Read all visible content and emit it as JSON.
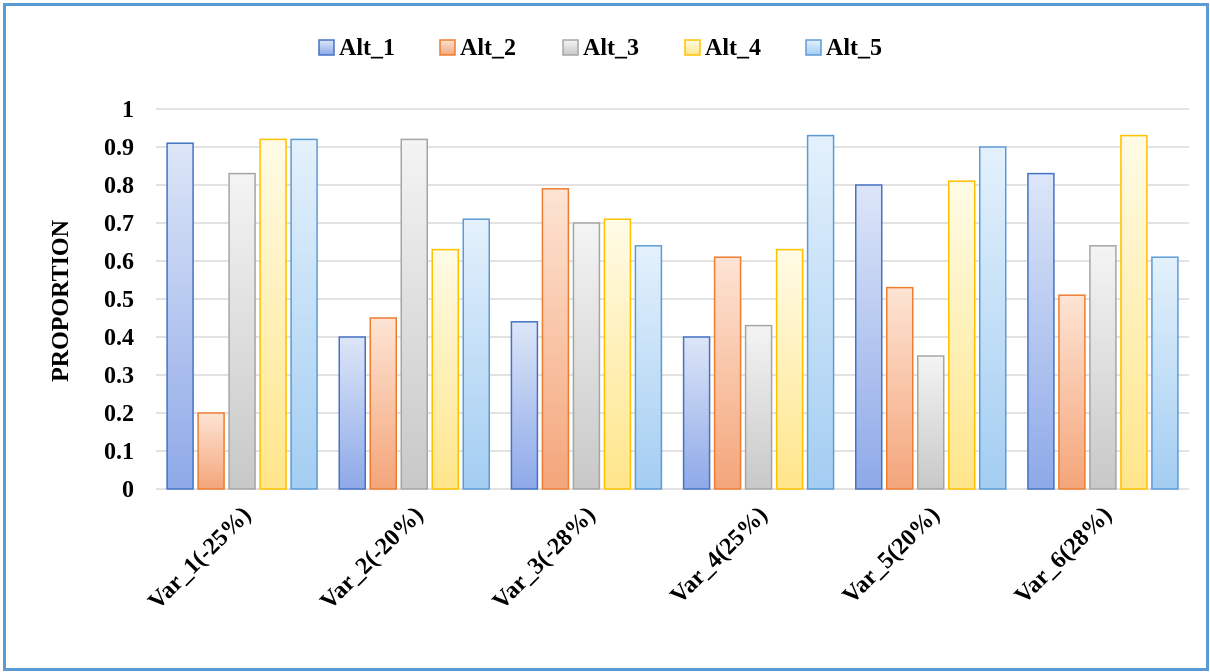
{
  "chart_data": {
    "type": "bar",
    "title": "",
    "xlabel": "",
    "ylabel": "PROPORTION",
    "ylim": [
      0,
      1
    ],
    "yticks": [
      "0",
      "0.1",
      "0.2",
      "0.3",
      "0.4",
      "0.5",
      "0.6",
      "0.7",
      "0.8",
      "0.9",
      "1"
    ],
    "categories": [
      "Var_1(-25%)",
      "Var_2(-20%)",
      "Var_3(-28%)",
      "Var_4(25%)",
      "Var_5(20%)",
      "Var_6(28%)"
    ],
    "legend_position": "top",
    "grid": true,
    "series": [
      {
        "name": "Alt_1",
        "values": [
          0.91,
          0.4,
          0.44,
          0.4,
          0.8,
          0.83
        ],
        "color": "#4472c4",
        "fill_light": "#dde6f8",
        "fill_dark": "#8ea9e8"
      },
      {
        "name": "Alt_2",
        "values": [
          0.2,
          0.45,
          0.79,
          0.61,
          0.53,
          0.51
        ],
        "color": "#ed7d31",
        "fill_light": "#fde4d4",
        "fill_dark": "#f4a57a"
      },
      {
        "name": "Alt_3",
        "values": [
          0.83,
          0.92,
          0.7,
          0.43,
          0.35,
          0.64
        ],
        "color": "#a5a5a5",
        "fill_light": "#f4f4f4",
        "fill_dark": "#c8c8c8"
      },
      {
        "name": "Alt_4",
        "values": [
          0.92,
          0.63,
          0.71,
          0.63,
          0.81,
          0.93
        ],
        "color": "#ffc000",
        "fill_light": "#fffbe6",
        "fill_dark": "#ffe58a"
      },
      {
        "name": "Alt_5",
        "values": [
          0.92,
          0.71,
          0.64,
          0.93,
          0.9,
          0.61
        ],
        "color": "#5b9bd5",
        "fill_light": "#e4f1fc",
        "fill_dark": "#a3cdf2"
      }
    ]
  }
}
